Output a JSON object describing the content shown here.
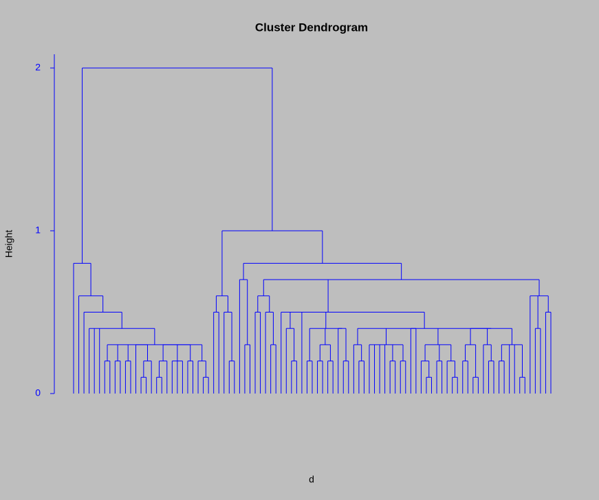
{
  "chart_data": {
    "type": "dendrogram",
    "title": "Cluster Dendrogram",
    "ylabel": "Height",
    "xlabel": "d",
    "color": "#0000ff",
    "ylim": [
      0,
      2
    ],
    "yticks": [
      0,
      1,
      2
    ],
    "tree": {
      "height": 2,
      "children": [
        {
          "height": 0.8,
          "children": [
            0,
            {
              "height": 0.6,
              "children": [
                0,
                {
                  "height": 0.5,
                  "children": [
                    0,
                    {
                      "height": 0.4,
                      "children": [
                        0,
                        0,
                        0,
                        {
                          "height": 0.3,
                          "children": [
                            {
                              "height": 0.2,
                              "children": [
                                0,
                                0
                              ]
                            },
                            {
                              "height": 0.2,
                              "children": [
                                0,
                                0
                              ]
                            },
                            {
                              "height": 0.2,
                              "children": [
                                0,
                                0
                              ]
                            },
                            {
                              "height": 0.3,
                              "children": [
                                0,
                                {
                                  "height": 0.2,
                                  "children": [
                                    {
                                      "height": 0.1,
                                      "children": [
                                        0,
                                        0
                                      ]
                                    },
                                    0
                                  ]
                                }
                              ]
                            },
                            {
                              "height": 0.3,
                              "children": [
                                {
                                  "height": 0.2,
                                  "children": [
                                    {
                                      "height": 0.1,
                                      "children": [
                                        0,
                                        0
                                      ]
                                    },
                                    0
                                  ]
                                },
                                {
                                  "height": 0.2,
                                  "children": [
                                    0,
                                    0,
                                    0
                                  ]
                                },
                                {
                                  "height": 0.2,
                                  "children": [
                                    0,
                                    0
                                  ]
                                }
                              ]
                            },
                            {
                              "height": 0.2,
                              "children": [
                                0,
                                {
                                  "height": 0.1,
                                  "children": [
                                    0,
                                    0
                                  ]
                                }
                              ]
                            }
                          ]
                        }
                      ]
                    }
                  ]
                }
              ]
            }
          ]
        },
        {
          "height": 1,
          "children": [
            {
              "height": 0.6,
              "children": [
                {
                  "height": 0.5,
                  "children": [
                    0,
                    0
                  ]
                },
                {
                  "height": 0.5,
                  "children": [
                    0,
                    {
                      "height": 0.2,
                      "children": [
                        0,
                        0
                      ]
                    }
                  ]
                }
              ]
            },
            {
              "height": 0.8,
              "children": [
                {
                  "height": 0.7,
                  "children": [
                    0,
                    {
                      "height": 0.3,
                      "children": [
                        0,
                        0
                      ]
                    }
                  ]
                },
                {
                  "height": 0.7,
                  "children": [
                    {
                      "height": 0.6,
                      "children": [
                        {
                          "height": 0.5,
                          "children": [
                            0,
                            0
                          ]
                        },
                        {
                          "height": 0.5,
                          "children": [
                            0,
                            {
                              "height": 0.3,
                              "children": [
                                0,
                                0
                              ]
                            }
                          ]
                        }
                      ]
                    },
                    {
                      "height": 0.5,
                      "children": [
                        0,
                        {
                          "height": 0.4,
                          "children": [
                            0,
                            {
                              "height": 0.2,
                              "children": [
                                0,
                                0
                              ]
                            }
                          ]
                        },
                        0,
                        {
                          "height": 0.5,
                          "children": [
                            {
                              "height": 0.4,
                              "children": [
                                {
                                  "height": 0.2,
                                  "children": [
                                    0,
                                    0
                                  ]
                                },
                                {
                                  "height": 0.3,
                                  "children": [
                                    {
                                      "height": 0.2,
                                      "children": [
                                        0,
                                        0
                                      ]
                                    },
                                    {
                                      "height": 0.2,
                                      "children": [
                                        0,
                                        0
                                      ]
                                    }
                                  ]
                                },
                                {
                                  "height": 0.4,
                                  "children": [
                                    0,
                                    {
                                      "height": 0.2,
                                      "children": [
                                        0,
                                        0
                                      ]
                                    }
                                  ]
                                }
                              ]
                            },
                            {
                              "height": 0.4,
                              "children": [
                                {
                                  "height": 0.3,
                                  "children": [
                                    0,
                                    {
                                      "height": 0.2,
                                      "children": [
                                        0,
                                        0
                                      ]
                                    }
                                  ]
                                },
                                {
                                  "height": 0.3,
                                  "children": [
                                    0,
                                    0,
                                    0,
                                    0,
                                    {
                                      "height": 0.2,
                                      "children": [
                                        0,
                                        0
                                      ]
                                    },
                                    {
                                      "height": 0.2,
                                      "children": [
                                        0,
                                        0
                                      ]
                                    }
                                  ]
                                },
                                {
                                  "height": 0.4,
                                  "children": [
                                    0,
                                    0
                                  ]
                                },
                                {
                                  "height": 0.3,
                                  "children": [
                                    {
                                      "height": 0.2,
                                      "children": [
                                        0,
                                        {
                                          "height": 0.1,
                                          "children": [
                                            0,
                                            0
                                          ]
                                        }
                                      ]
                                    },
                                    {
                                      "height": 0.2,
                                      "children": [
                                        0,
                                        0
                                      ]
                                    },
                                    {
                                      "height": 0.2,
                                      "children": [
                                        0,
                                        {
                                          "height": 0.1,
                                          "children": [
                                            0,
                                            0
                                          ]
                                        }
                                      ]
                                    }
                                  ]
                                },
                                {
                                  "height": 0.4,
                                  "children": [
                                    {
                                      "height": 0.3,
                                      "children": [
                                        {
                                          "height": 0.2,
                                          "children": [
                                            0,
                                            0
                                          ]
                                        },
                                        {
                                          "height": 0.1,
                                          "children": [
                                            0,
                                            0
                                          ]
                                        }
                                      ]
                                    },
                                    {
                                      "height": 0.3,
                                      "children": [
                                        0,
                                        {
                                          "height": 0.2,
                                          "children": [
                                            0,
                                            0
                                          ]
                                        }
                                      ]
                                    },
                                    {
                                      "height": 0.3,
                                      "children": [
                                        {
                                          "height": 0.2,
                                          "children": [
                                            0,
                                            0
                                          ]
                                        },
                                        0,
                                        0,
                                        {
                                          "height": 0.1,
                                          "children": [
                                            0,
                                            0
                                          ]
                                        }
                                      ]
                                    }
                                  ]
                                }
                              ]
                            }
                          ]
                        }
                      ]
                    },
                    {
                      "height": 0.6,
                      "children": [
                        0,
                        {
                          "height": 0.4,
                          "children": [
                            0,
                            0
                          ]
                        },
                        {
                          "height": 0.5,
                          "children": [
                            0,
                            0
                          ]
                        }
                      ]
                    }
                  ]
                }
              ]
            }
          ]
        }
      ]
    }
  }
}
